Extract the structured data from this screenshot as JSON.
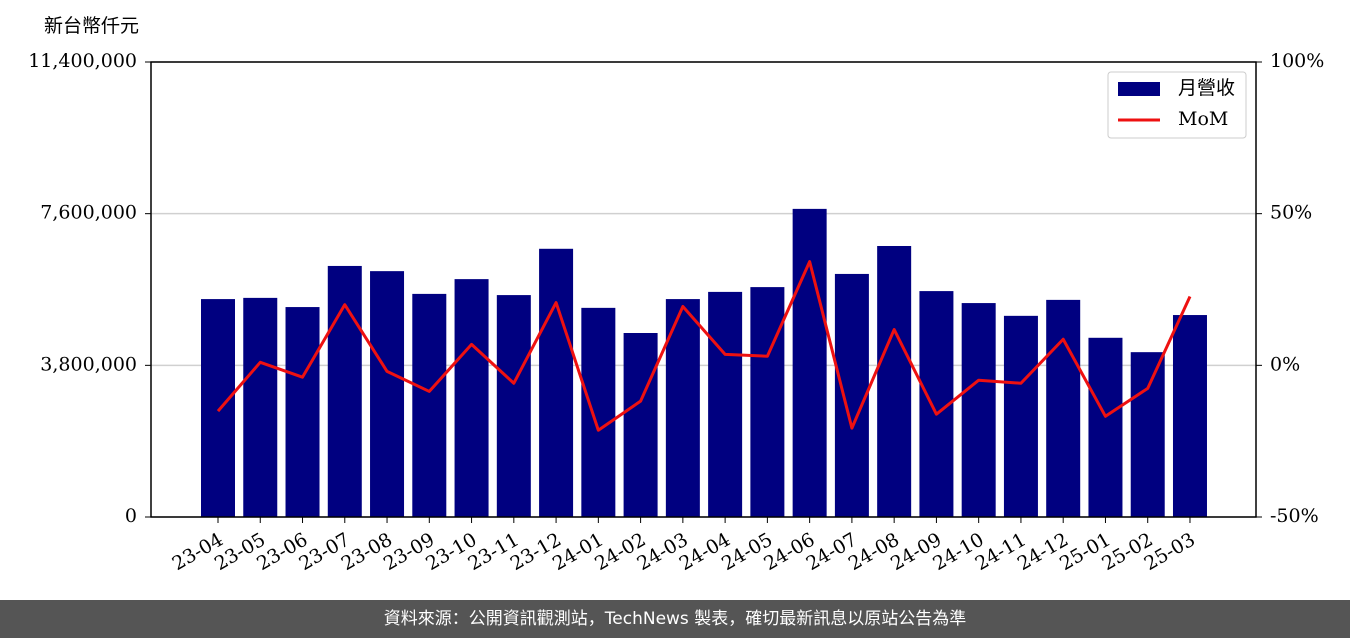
{
  "chart_data": {
    "type": "bar-line",
    "y_label": "新台幣仟元",
    "categories": [
      "23-04",
      "23-05",
      "23-06",
      "23-07",
      "23-08",
      "23-09",
      "23-10",
      "23-11",
      "23-12",
      "24-01",
      "24-02",
      "24-03",
      "24-04",
      "24-05",
      "24-06",
      "24-07",
      "24-08",
      "24-09",
      "24-10",
      "24-11",
      "24-12",
      "25-01",
      "25-02",
      "25-03"
    ],
    "series": [
      {
        "name": "月營收",
        "color": "#000080",
        "type": "bar",
        "values": [
          5460000,
          5490000,
          5260000,
          6290000,
          6160000,
          5590000,
          5960000,
          5560000,
          6720000,
          5240000,
          4610000,
          5460000,
          5640000,
          5760000,
          7720000,
          6090000,
          6790000,
          5660000,
          5360000,
          5040000,
          5440000,
          4490000,
          4130000,
          5060000
        ]
      },
      {
        "name": "MoM",
        "color": "#ee1111",
        "type": "line",
        "axis": "y2",
        "values": [
          -15.1,
          1,
          -3.9,
          20,
          -2,
          -8.6,
          6.9,
          -5.9,
          20.7,
          -21.4,
          -11.8,
          19.4,
          3.6,
          3,
          34.2,
          -20.7,
          11.8,
          -16.1,
          -4.9,
          -5.9,
          8.6,
          -16.8,
          -7.6,
          22.7
        ]
      }
    ],
    "ylim": [
      0,
      11400000
    ],
    "yticks": [
      0,
      {
        "value": 3800000,
        "label": "3,800,000"
      },
      {
        "value": 7600000,
        "label": "7,600,000"
      },
      {
        "value": 11400000,
        "label": "11,400,000"
      }
    ],
    "y2lim": [
      -50,
      100
    ],
    "y2ticks": [
      {
        "value": -50,
        "label": "-50%"
      },
      {
        "value": 0,
        "label": "0%"
      },
      {
        "value": 50,
        "label": "50%"
      },
      {
        "value": 100,
        "label": "100%"
      }
    ],
    "grid": true,
    "legend": "upper-right"
  },
  "footer": "資料來源：公開資訊觀測站，TechNews 製表，確切最新訊息以原站公告為準"
}
